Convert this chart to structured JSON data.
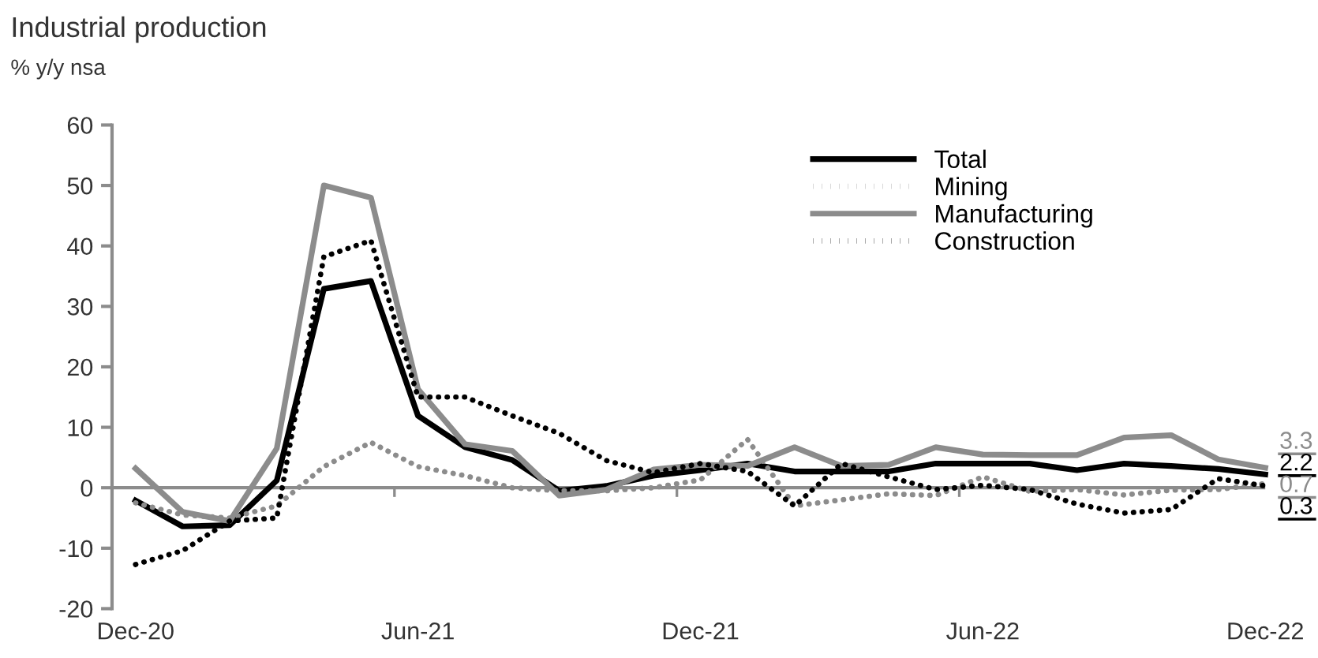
{
  "chart_data": {
    "type": "line",
    "title": "Industrial production",
    "subtitle": "% y/y nsa",
    "categories": [
      "Dec-20",
      null,
      null,
      null,
      null,
      null,
      "Jun-21",
      null,
      null,
      null,
      null,
      null,
      "Dec-21",
      null,
      null,
      null,
      null,
      null,
      "Jun-22",
      null,
      null,
      null,
      null,
      null,
      "Dec-22"
    ],
    "series": [
      {
        "name": "Total",
        "color": "#000000",
        "line_style": "solid",
        "values": [
          -2.1,
          -6.4,
          -6.2,
          1.2,
          32.9,
          34.2,
          11.9,
          6.7,
          4.6,
          -0.5,
          0.3,
          2,
          2.9,
          4,
          2.7,
          2.7,
          2.7,
          4,
          4,
          4,
          2.9,
          4,
          3.6,
          3.1,
          2.2
        ]
      },
      {
        "name": "Mining",
        "color": "#8c8c8c",
        "line_style": "dotted",
        "values": [
          -2.5,
          -4.5,
          -5,
          -3,
          3.5,
          7.5,
          3.5,
          2,
          0,
          -0.5,
          -0.5,
          0,
          1.3,
          8,
          -3,
          -2,
          -1,
          -1.3,
          1.8,
          -0.6,
          -0.3,
          -1.2,
          -0.4,
          -0.3,
          0.7
        ]
      },
      {
        "name": "Manufacturing",
        "color": "#8c8c8c",
        "line_style": "solid",
        "values": [
          3.2,
          -4,
          -5.5,
          6.5,
          50,
          48,
          16.3,
          7.2,
          6.1,
          -1.3,
          -0.3,
          3,
          3.8,
          3.6,
          6.7,
          3.6,
          3.8,
          6.7,
          5.5,
          5.4,
          5.4,
          8.3,
          8.7,
          4.7,
          3.3
        ]
      },
      {
        "name": "Construction",
        "color": "#000000",
        "line_style": "dotted",
        "values": [
          -12.7,
          -10.4,
          -5.5,
          -5,
          38.2,
          40.9,
          15,
          15,
          11.9,
          9,
          4.5,
          2.5,
          4,
          2.7,
          -3,
          4,
          1.8,
          -0.3,
          0.4,
          -0.3,
          -2.7,
          -4.2,
          -3.6,
          1.5,
          0.3
        ]
      }
    ],
    "annotations": [
      {
        "text": "3.3",
        "x": "Dec-22",
        "y": 3.3
      },
      {
        "text": "2.2",
        "x": "Dec-22",
        "y": 2.2
      },
      {
        "text": "0.7",
        "x": "Dec-22",
        "y": 0.7
      },
      {
        "text": "0.3",
        "x": "Dec-22",
        "y": 0.3
      }
    ],
    "ylim": [
      -20,
      60
    ],
    "yticks": [
      -20,
      -10,
      0,
      10,
      20,
      30,
      40,
      50,
      60
    ],
    "legend": "top right",
    "marker": "none"
  }
}
